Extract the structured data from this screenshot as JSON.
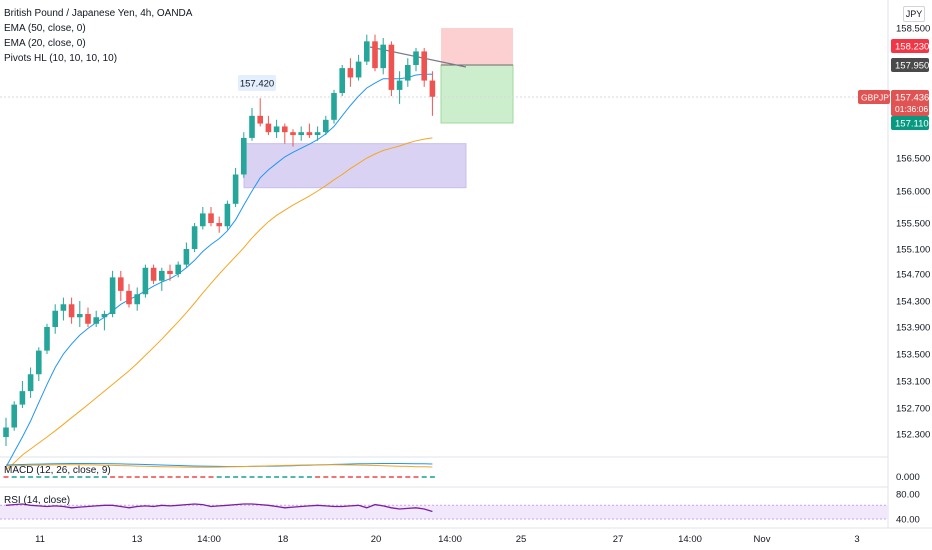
{
  "legend": {
    "title": "British Pound / Japanese Yen, 4h, OANDA",
    "ema50": "EMA (50, close, 0)",
    "ema20": "EMA (20, close, 0)",
    "pivots": "Pivots HL (10, 10, 10, 10)"
  },
  "currency": "JPY",
  "macd_label": "MACD (12, 26, close, 9)",
  "rsi_label": "RSI (14, close)",
  "colors": {
    "up": "#26a69a",
    "down": "#ef5350",
    "ema20": "#2196f3",
    "ema50": "#f5a623",
    "rsi": "#7b1fa2",
    "zone": "#d9d2f2",
    "stop": "#fcd0d0",
    "target": "#cdeecd"
  },
  "chart_data": {
    "type": "candlestick",
    "symbol": "GBPJPY",
    "timeframe": "4h",
    "y_ticks": [
      "158.500",
      "158.230",
      "157.950",
      "156.500",
      "156.000",
      "155.500",
      "155.100",
      "154.700",
      "154.300",
      "153.900",
      "153.500",
      "153.100",
      "152.700",
      "152.300"
    ],
    "y_range": [
      151.7,
      158.8
    ],
    "x_ticks": [
      "11",
      "13",
      "14:00",
      "18",
      "20",
      "14:00",
      "25",
      "27",
      "14:00",
      "Nov",
      "3"
    ],
    "annotation_high": "157.420",
    "price_tags": {
      "stop": {
        "label": "158.230",
        "value": 158.23
      },
      "entry": {
        "label": "157.950",
        "value": 157.95
      },
      "last": {
        "symbol": "GBPJPY",
        "label": "157.436",
        "countdown": "01:36:06",
        "value": 157.436
      },
      "target": {
        "label": "157.110",
        "value": 157.11
      }
    },
    "demand_zone": {
      "low": 156.05,
      "high": 156.75
    },
    "macd_ticks": [
      "0.000"
    ],
    "rsi_ticks": [
      "80.00",
      "40.00"
    ],
    "candles": [
      {
        "o": 152.25,
        "h": 152.55,
        "l": 152.1,
        "c": 152.4
      },
      {
        "o": 152.4,
        "h": 152.8,
        "l": 152.35,
        "c": 152.75
      },
      {
        "o": 152.75,
        "h": 153.1,
        "l": 152.7,
        "c": 152.95
      },
      {
        "o": 152.95,
        "h": 153.3,
        "l": 152.85,
        "c": 153.2
      },
      {
        "o": 153.2,
        "h": 153.6,
        "l": 153.1,
        "c": 153.55
      },
      {
        "o": 153.55,
        "h": 153.95,
        "l": 153.5,
        "c": 153.9
      },
      {
        "o": 153.9,
        "h": 154.25,
        "l": 153.8,
        "c": 154.15
      },
      {
        "o": 154.15,
        "h": 154.35,
        "l": 154.0,
        "c": 154.25
      },
      {
        "o": 154.25,
        "h": 154.35,
        "l": 153.95,
        "c": 154.05
      },
      {
        "o": 154.05,
        "h": 154.3,
        "l": 153.9,
        "c": 154.1
      },
      {
        "o": 154.1,
        "h": 154.2,
        "l": 153.9,
        "c": 153.95
      },
      {
        "o": 153.95,
        "h": 154.15,
        "l": 153.9,
        "c": 154.05
      },
      {
        "o": 154.05,
        "h": 154.15,
        "l": 153.85,
        "c": 154.1
      },
      {
        "o": 154.1,
        "h": 154.75,
        "l": 154.05,
        "c": 154.65
      },
      {
        "o": 154.65,
        "h": 154.75,
        "l": 154.3,
        "c": 154.45
      },
      {
        "o": 154.45,
        "h": 154.55,
        "l": 154.2,
        "c": 154.25
      },
      {
        "o": 154.25,
        "h": 154.5,
        "l": 154.15,
        "c": 154.4
      },
      {
        "o": 154.4,
        "h": 154.85,
        "l": 154.35,
        "c": 154.8
      },
      {
        "o": 154.8,
        "h": 154.85,
        "l": 154.55,
        "c": 154.6
      },
      {
        "o": 154.6,
        "h": 154.8,
        "l": 154.45,
        "c": 154.75
      },
      {
        "o": 154.75,
        "h": 154.85,
        "l": 154.6,
        "c": 154.7
      },
      {
        "o": 154.7,
        "h": 154.9,
        "l": 154.65,
        "c": 154.85
      },
      {
        "o": 154.85,
        "h": 155.2,
        "l": 154.8,
        "c": 155.1
      },
      {
        "o": 155.1,
        "h": 155.5,
        "l": 155.05,
        "c": 155.45
      },
      {
        "o": 155.45,
        "h": 155.75,
        "l": 155.4,
        "c": 155.65
      },
      {
        "o": 155.65,
        "h": 155.75,
        "l": 155.45,
        "c": 155.5
      },
      {
        "o": 155.5,
        "h": 155.6,
        "l": 155.35,
        "c": 155.45
      },
      {
        "o": 155.45,
        "h": 155.85,
        "l": 155.4,
        "c": 155.8
      },
      {
        "o": 155.8,
        "h": 156.35,
        "l": 155.75,
        "c": 156.25
      },
      {
        "o": 156.25,
        "h": 156.95,
        "l": 156.2,
        "c": 156.85
      },
      {
        "o": 156.85,
        "h": 157.3,
        "l": 156.8,
        "c": 157.2
      },
      {
        "o": 157.2,
        "h": 157.42,
        "l": 157.05,
        "c": 157.1
      },
      {
        "o": 157.1,
        "h": 157.2,
        "l": 156.9,
        "c": 156.95
      },
      {
        "o": 156.95,
        "h": 157.15,
        "l": 156.85,
        "c": 157.05
      },
      {
        "o": 157.05,
        "h": 157.1,
        "l": 156.75,
        "c": 156.95
      },
      {
        "o": 156.95,
        "h": 157.0,
        "l": 156.7,
        "c": 156.9
      },
      {
        "o": 156.9,
        "h": 157.05,
        "l": 156.8,
        "c": 156.95
      },
      {
        "o": 156.95,
        "h": 157.1,
        "l": 156.85,
        "c": 156.9
      },
      {
        "o": 156.9,
        "h": 157.05,
        "l": 156.8,
        "c": 156.95
      },
      {
        "o": 156.95,
        "h": 157.2,
        "l": 156.9,
        "c": 157.15
      },
      {
        "o": 157.15,
        "h": 157.55,
        "l": 157.1,
        "c": 157.5
      },
      {
        "o": 157.5,
        "h": 157.95,
        "l": 157.45,
        "c": 157.9
      },
      {
        "o": 157.9,
        "h": 158.05,
        "l": 157.6,
        "c": 157.75
      },
      {
        "o": 157.75,
        "h": 158.1,
        "l": 157.7,
        "c": 158.0
      },
      {
        "o": 158.0,
        "h": 158.4,
        "l": 157.95,
        "c": 158.3
      },
      {
        "o": 158.3,
        "h": 158.4,
        "l": 157.85,
        "c": 157.9
      },
      {
        "o": 157.9,
        "h": 158.35,
        "l": 157.8,
        "c": 158.25
      },
      {
        "o": 158.25,
        "h": 158.3,
        "l": 157.45,
        "c": 157.55
      },
      {
        "o": 157.55,
        "h": 157.85,
        "l": 157.35,
        "c": 157.7
      },
      {
        "o": 157.7,
        "h": 158.05,
        "l": 157.6,
        "c": 157.95
      },
      {
        "o": 157.95,
        "h": 158.2,
        "l": 157.85,
        "c": 158.15
      },
      {
        "o": 158.15,
        "h": 158.2,
        "l": 157.6,
        "c": 157.7
      },
      {
        "o": 157.7,
        "h": 157.85,
        "l": 157.2,
        "c": 157.44
      }
    ],
    "ema20": [
      151.75,
      152.0,
      152.25,
      152.5,
      152.78,
      153.05,
      153.3,
      153.5,
      153.65,
      153.78,
      153.88,
      153.97,
      154.05,
      154.15,
      154.25,
      154.32,
      154.38,
      154.45,
      154.52,
      154.58,
      154.63,
      154.7,
      154.8,
      154.92,
      155.06,
      155.17,
      155.26,
      155.38,
      155.55,
      155.78,
      156.0,
      156.2,
      156.32,
      156.42,
      156.52,
      156.6,
      156.67,
      156.74,
      156.82,
      156.92,
      157.05,
      157.2,
      157.33,
      157.45,
      157.58,
      157.66,
      157.73,
      157.73,
      157.73,
      157.75,
      157.79,
      157.8,
      157.8
    ],
    "ema50": [
      151.7,
      151.82,
      151.95,
      152.05,
      152.15,
      152.25,
      152.35,
      152.45,
      152.55,
      152.65,
      152.75,
      152.85,
      152.95,
      153.05,
      153.15,
      153.25,
      153.36,
      153.48,
      153.6,
      153.72,
      153.85,
      153.98,
      154.12,
      154.27,
      154.42,
      154.56,
      154.7,
      154.84,
      154.98,
      155.12,
      155.27,
      155.4,
      155.52,
      155.62,
      155.7,
      155.78,
      155.85,
      155.92,
      156.0,
      156.08,
      156.17,
      156.25,
      156.34,
      156.42,
      156.5,
      156.57,
      156.63,
      156.67,
      156.71,
      156.76,
      156.8,
      156.83,
      156.85
    ],
    "rsi": [
      62,
      63,
      64,
      62,
      61,
      60,
      61,
      60,
      58,
      59,
      60,
      61,
      62,
      62,
      60,
      58,
      60,
      61,
      60,
      62,
      61,
      62,
      63,
      64,
      63,
      60,
      61,
      62,
      63,
      64,
      64,
      63,
      62,
      60,
      58,
      59,
      60,
      61,
      62,
      61,
      60,
      60,
      61,
      62,
      58,
      63,
      61,
      58,
      56,
      57,
      58,
      56,
      52
    ]
  }
}
